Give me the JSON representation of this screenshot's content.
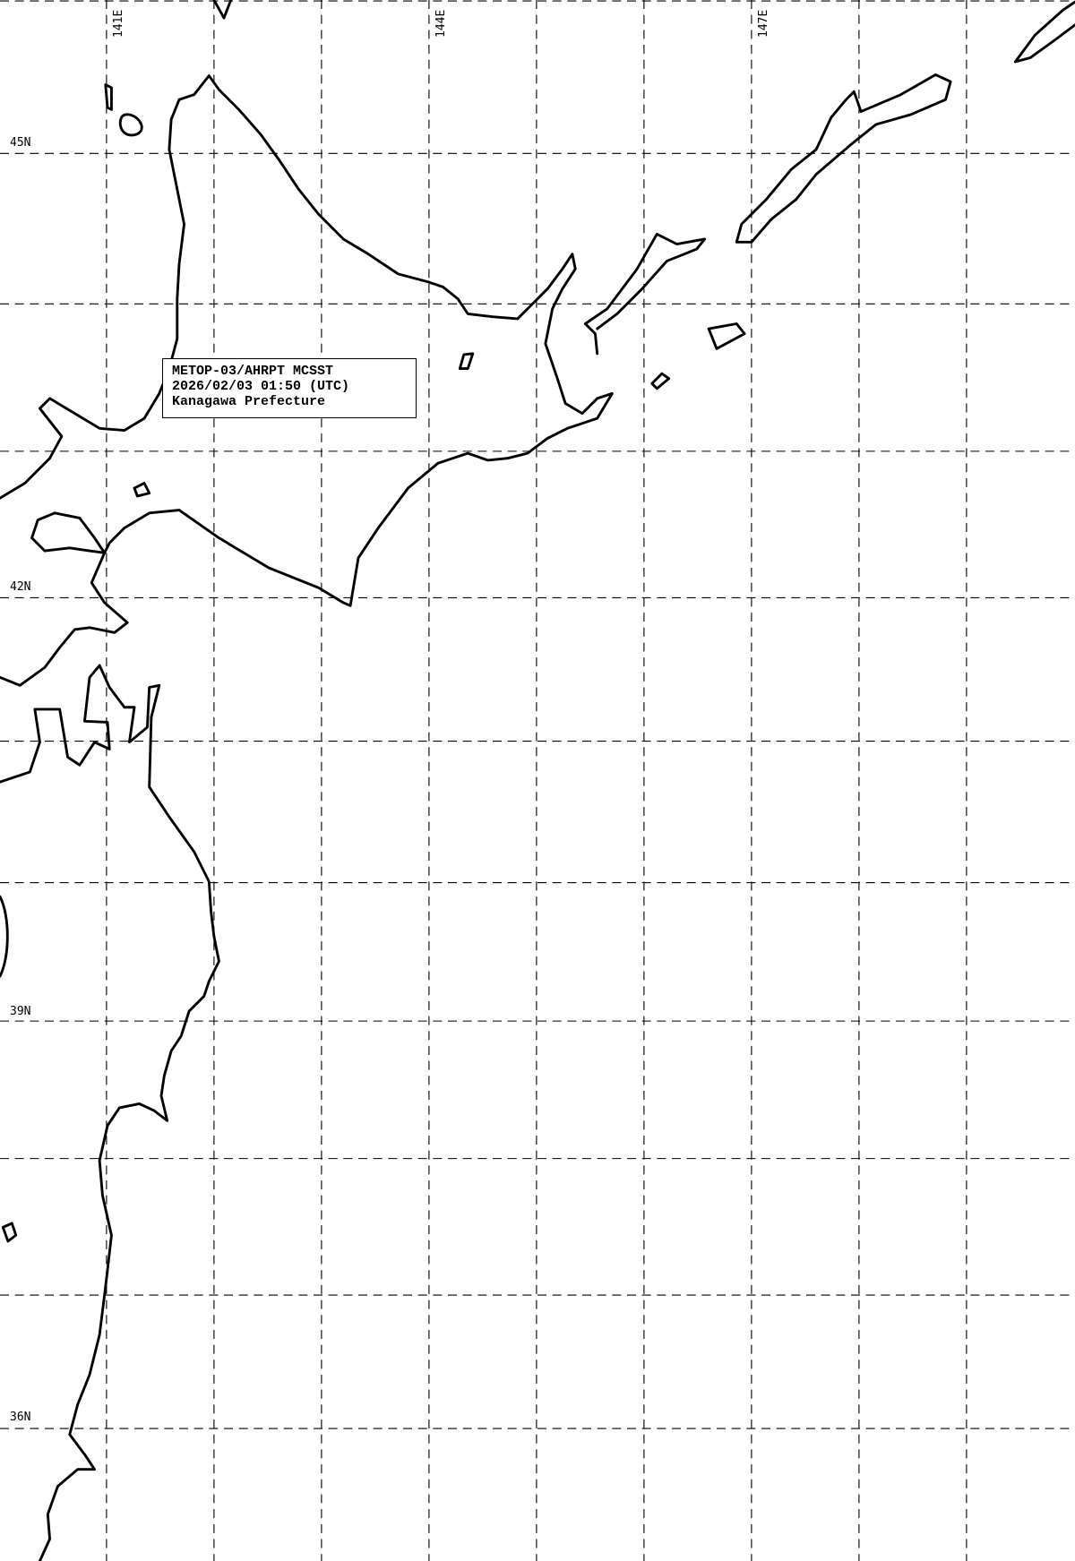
{
  "info_box": {
    "line1": "METOP-03/AHRPT MCSST",
    "line2": "2026/02/03 01:50 (UTC)",
    "line3": "Kanagawa Prefecture"
  },
  "longitude_labels": [
    "141E",
    "144E",
    "147E"
  ],
  "latitude_labels": [
    "45N",
    "42N",
    "39N",
    "36N"
  ],
  "colors": {
    "background": "#ffffff",
    "lines": "#000000"
  }
}
